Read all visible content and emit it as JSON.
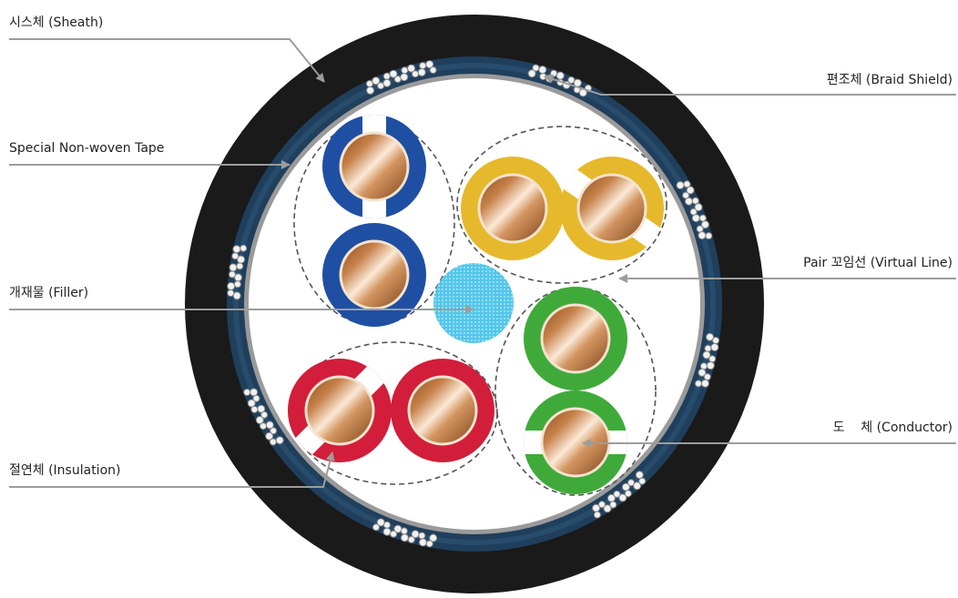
{
  "labels": {
    "sheath": "시스체 (Sheath)",
    "tape": "Special Non-woven Tape",
    "filler": "개재물 (Filler)",
    "insulation": "절연체 (Insulation)",
    "braid": "편조체 (Braid Shield)",
    "pair": "Pair 꼬임선 (Virtual Line)",
    "conductor": "도    체 (Conductor)"
  },
  "colors": {
    "sheath": "#1a1a1a",
    "braid_layer": "#1f3f5c",
    "tape_ring": "#9a9a9a",
    "core_bg": "#ffffff",
    "blue_pair": "#1f4fa3",
    "yellow_pair": "#e6b92c",
    "red_pair": "#d21e3b",
    "green_pair": "#3faa3a",
    "filler": "#4cc3e8",
    "conductor": "#b87333",
    "leader_line": "#9c9c9c"
  }
}
